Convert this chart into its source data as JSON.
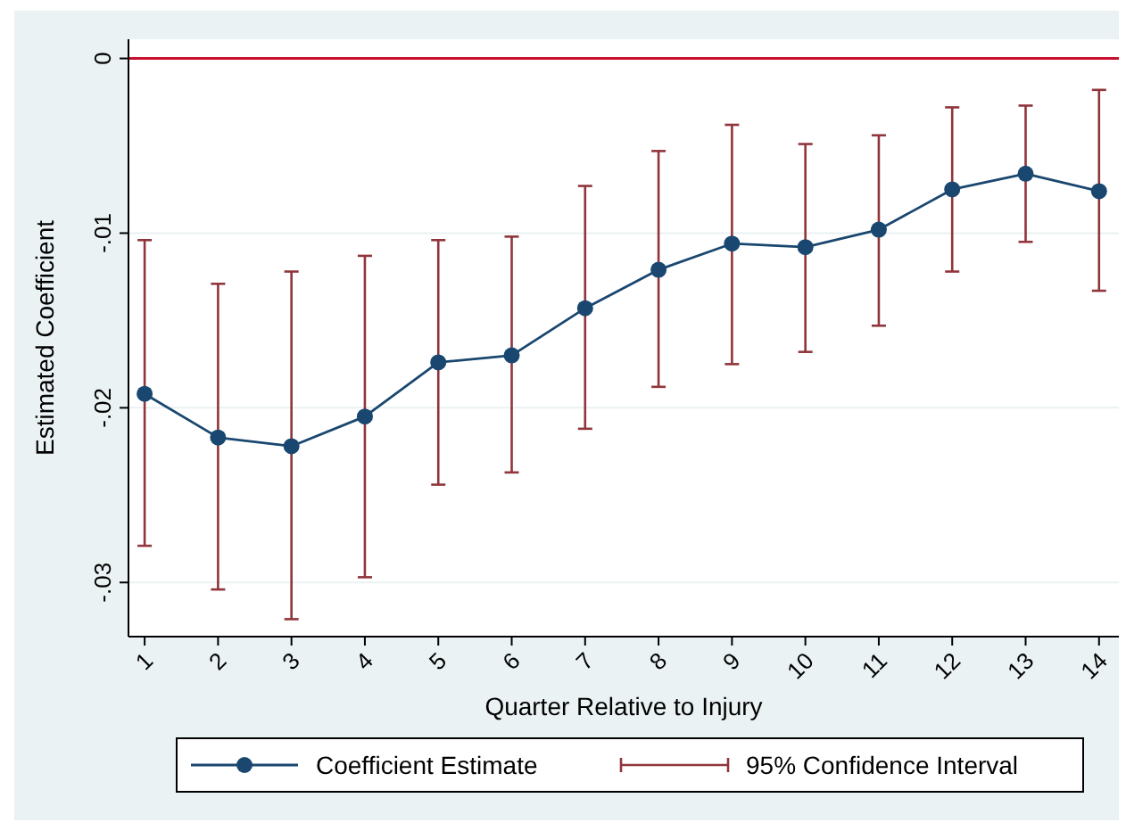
{
  "chart_data": {
    "type": "line",
    "xlabel": "Quarter Relative to Injury",
    "ylabel": "Estimated Coefficient",
    "x": [
      1,
      2,
      3,
      4,
      5,
      6,
      7,
      8,
      9,
      10,
      11,
      12,
      13,
      14
    ],
    "xlim": [
      0.78,
      14.27
    ],
    "xticks": [
      1,
      2,
      3,
      4,
      5,
      6,
      7,
      8,
      9,
      10,
      11,
      12,
      13,
      14
    ],
    "ylim": [
      -0.0331,
      0.0011
    ],
    "yticks": [
      {
        "value": 0,
        "label": "0"
      },
      {
        "value": -0.01,
        "label": "-.01"
      },
      {
        "value": -0.02,
        "label": "-.02"
      },
      {
        "value": -0.03,
        "label": "-.03"
      }
    ],
    "grid": "y",
    "marker": "circle",
    "line_style": "solid",
    "legend": "bottom",
    "series": [
      {
        "name": "Coefficient Estimate",
        "color": "#1a476f",
        "values": [
          -0.0192,
          -0.0217,
          -0.0222,
          -0.0205,
          -0.0174,
          -0.017,
          -0.0143,
          -0.0121,
          -0.0106,
          -0.0108,
          -0.0098,
          -0.0075,
          -0.0066,
          -0.0076
        ],
        "errors": [
          [
            -0.0279,
            -0.0104
          ],
          [
            -0.0304,
            -0.0129
          ],
          [
            -0.0321,
            -0.0122
          ],
          [
            -0.0297,
            -0.0113
          ],
          [
            -0.0244,
            -0.0104
          ],
          [
            -0.0237,
            -0.0102
          ],
          [
            -0.0212,
            -0.0073
          ],
          [
            -0.0188,
            -0.0053
          ],
          [
            -0.0175,
            -0.0038
          ],
          [
            -0.0168,
            -0.0049
          ],
          [
            -0.0153,
            -0.0044
          ],
          [
            -0.0122,
            -0.0028
          ],
          [
            -0.0105,
            -0.0027
          ],
          [
            -0.0133,
            -0.0018
          ]
        ]
      }
    ],
    "ref_lines": [
      {
        "axis": "y",
        "value": 0,
        "color": "#c8102e"
      }
    ],
    "annotations": [
      "95% Confidence Interval"
    ]
  }
}
